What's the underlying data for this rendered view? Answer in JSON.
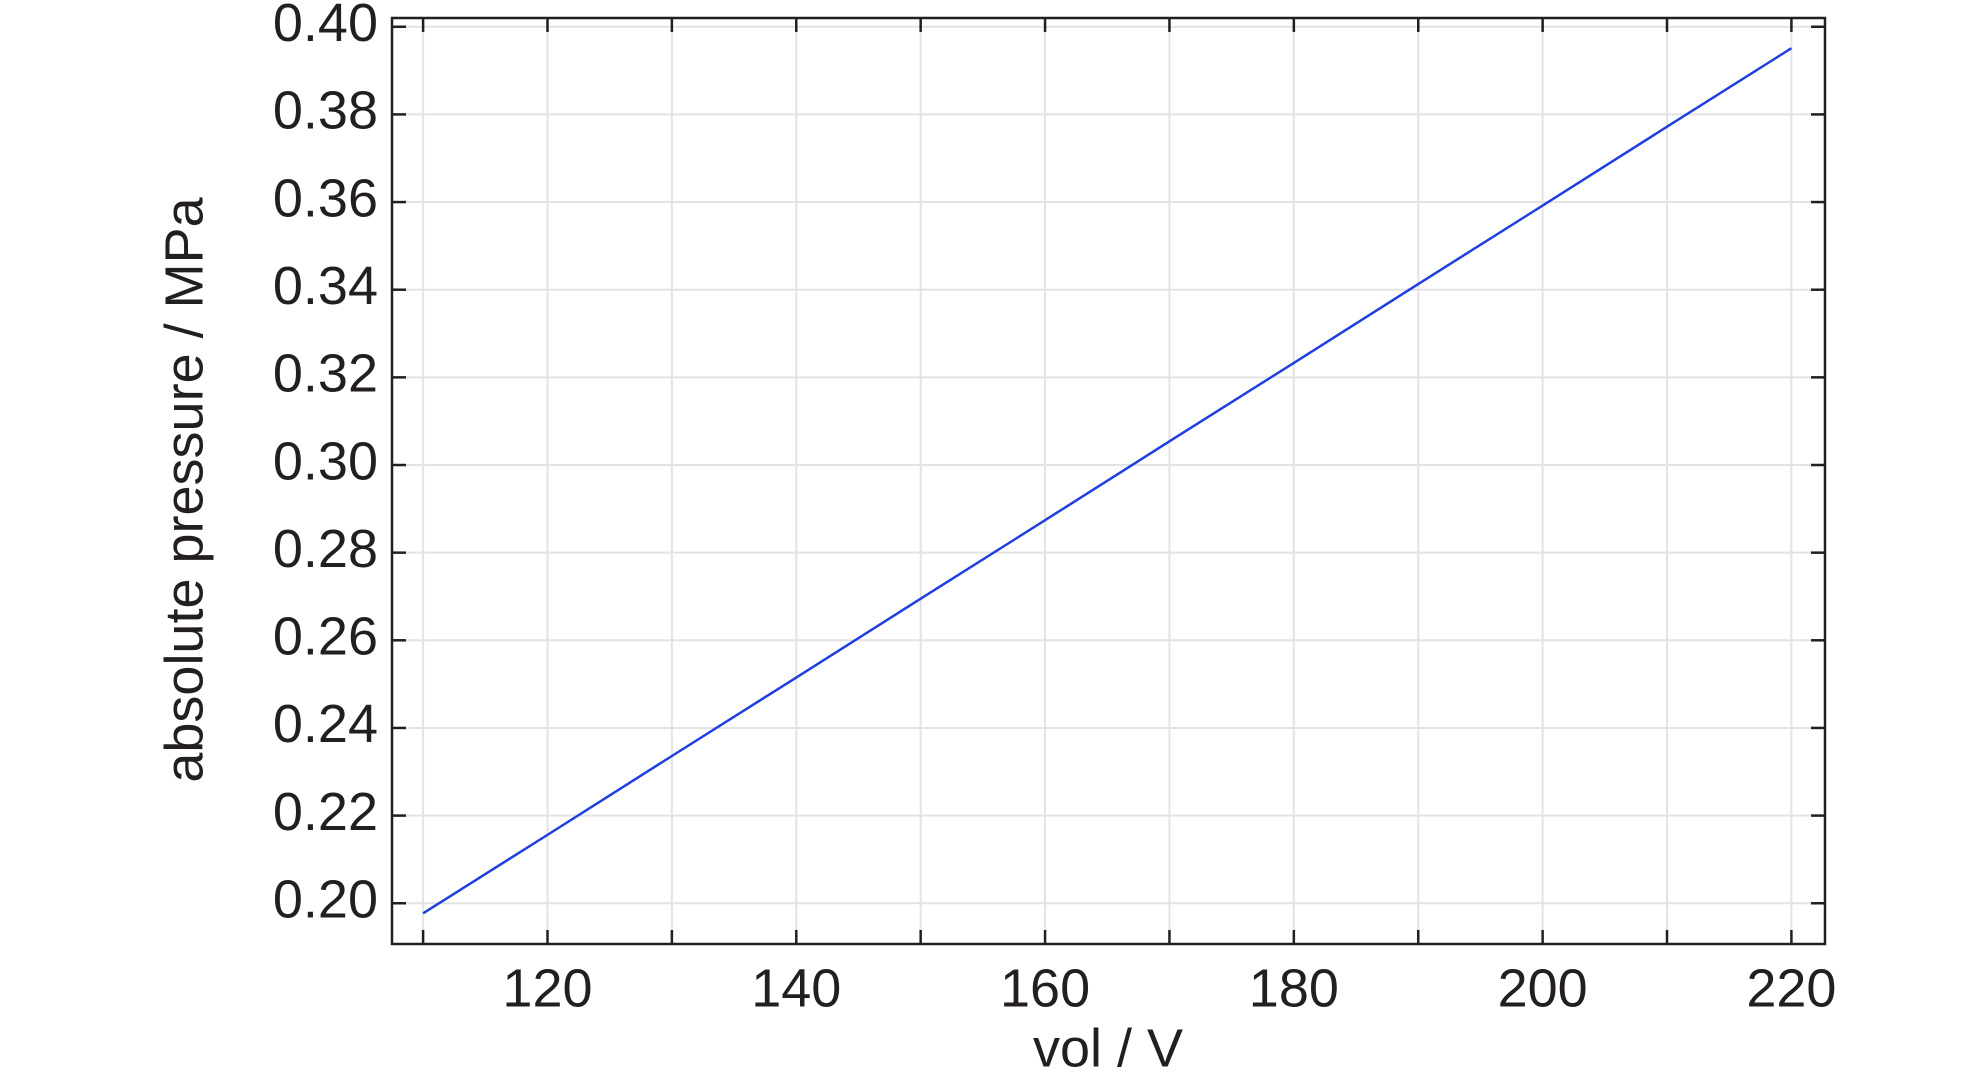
{
  "chart_data": {
    "type": "line",
    "x_label": "vol / V",
    "y_label": "absolute pressure / MPa",
    "x": [
      110,
      120,
      130,
      140,
      150,
      160,
      170,
      180,
      190,
      200,
      210,
      220
    ],
    "series": [
      {
        "name": "absolute pressure",
        "color": "#1f3fe0",
        "values": [
          0.1977,
          0.2156,
          0.2336,
          0.2515,
          0.2695,
          0.2874,
          0.3054,
          0.3233,
          0.3413,
          0.3592,
          0.3772,
          0.3951
        ]
      }
    ],
    "xlim": [
      107.5,
      222.7
    ],
    "ylim": [
      0.1907,
      0.402
    ],
    "xticks": [
      120,
      140,
      160,
      180,
      200,
      220
    ],
    "xminorticks": [
      110,
      130,
      150,
      170,
      190,
      210
    ],
    "yticks": [
      {
        "value": 0.2,
        "label": "0.20"
      },
      0.22,
      0.24,
      0.26,
      0.28,
      {
        "value": 0.3,
        "label": "0.30"
      },
      0.32,
      0.34,
      0.36,
      0.38,
      {
        "value": 0.4,
        "label": "0.40"
      }
    ],
    "grid": true
  }
}
